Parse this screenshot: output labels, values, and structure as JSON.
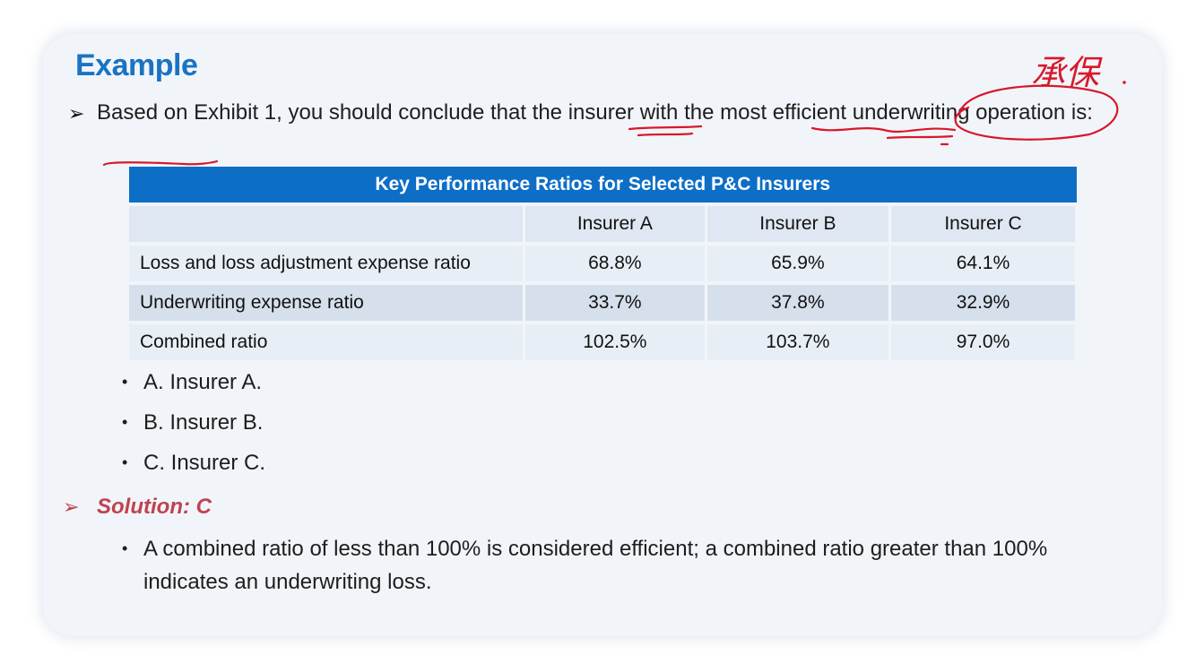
{
  "slide": {
    "title": "Example",
    "question": "Based on Exhibit 1, you should conclude that the insurer with the most efficient underwriting operation is:",
    "table": {
      "caption": "Key Performance Ratios for Selected P&C Insurers",
      "columns": [
        "",
        "Insurer A",
        "Insurer B",
        "Insurer C"
      ],
      "rows": [
        {
          "label": "Loss and loss adjustment expense ratio",
          "values": [
            "68.8%",
            "65.9%",
            "64.1%"
          ]
        },
        {
          "label": "Underwriting expense ratio",
          "values": [
            "33.7%",
            "37.8%",
            "32.9%"
          ]
        },
        {
          "label": "Combined ratio",
          "values": [
            "102.5%",
            "103.7%",
            "97.0%"
          ]
        }
      ]
    },
    "options": [
      "A. Insurer A.",
      "B. Insurer B.",
      "C. Insurer C."
    ],
    "solution": "Solution: C",
    "explanation": "A combined ratio of less than 100% is considered efficient; a combined ratio greater than 100% indicates an underwriting loss.",
    "handwritten_note": "承保"
  },
  "colors": {
    "title": "#1a73c3",
    "table_header": "#0d6ec6",
    "solution": "#c0424e",
    "ink": "#d8182a",
    "card": "#f1f5f9"
  },
  "icons": [
    "arrow-bullet-icon",
    "dot-bullet-icon"
  ]
}
